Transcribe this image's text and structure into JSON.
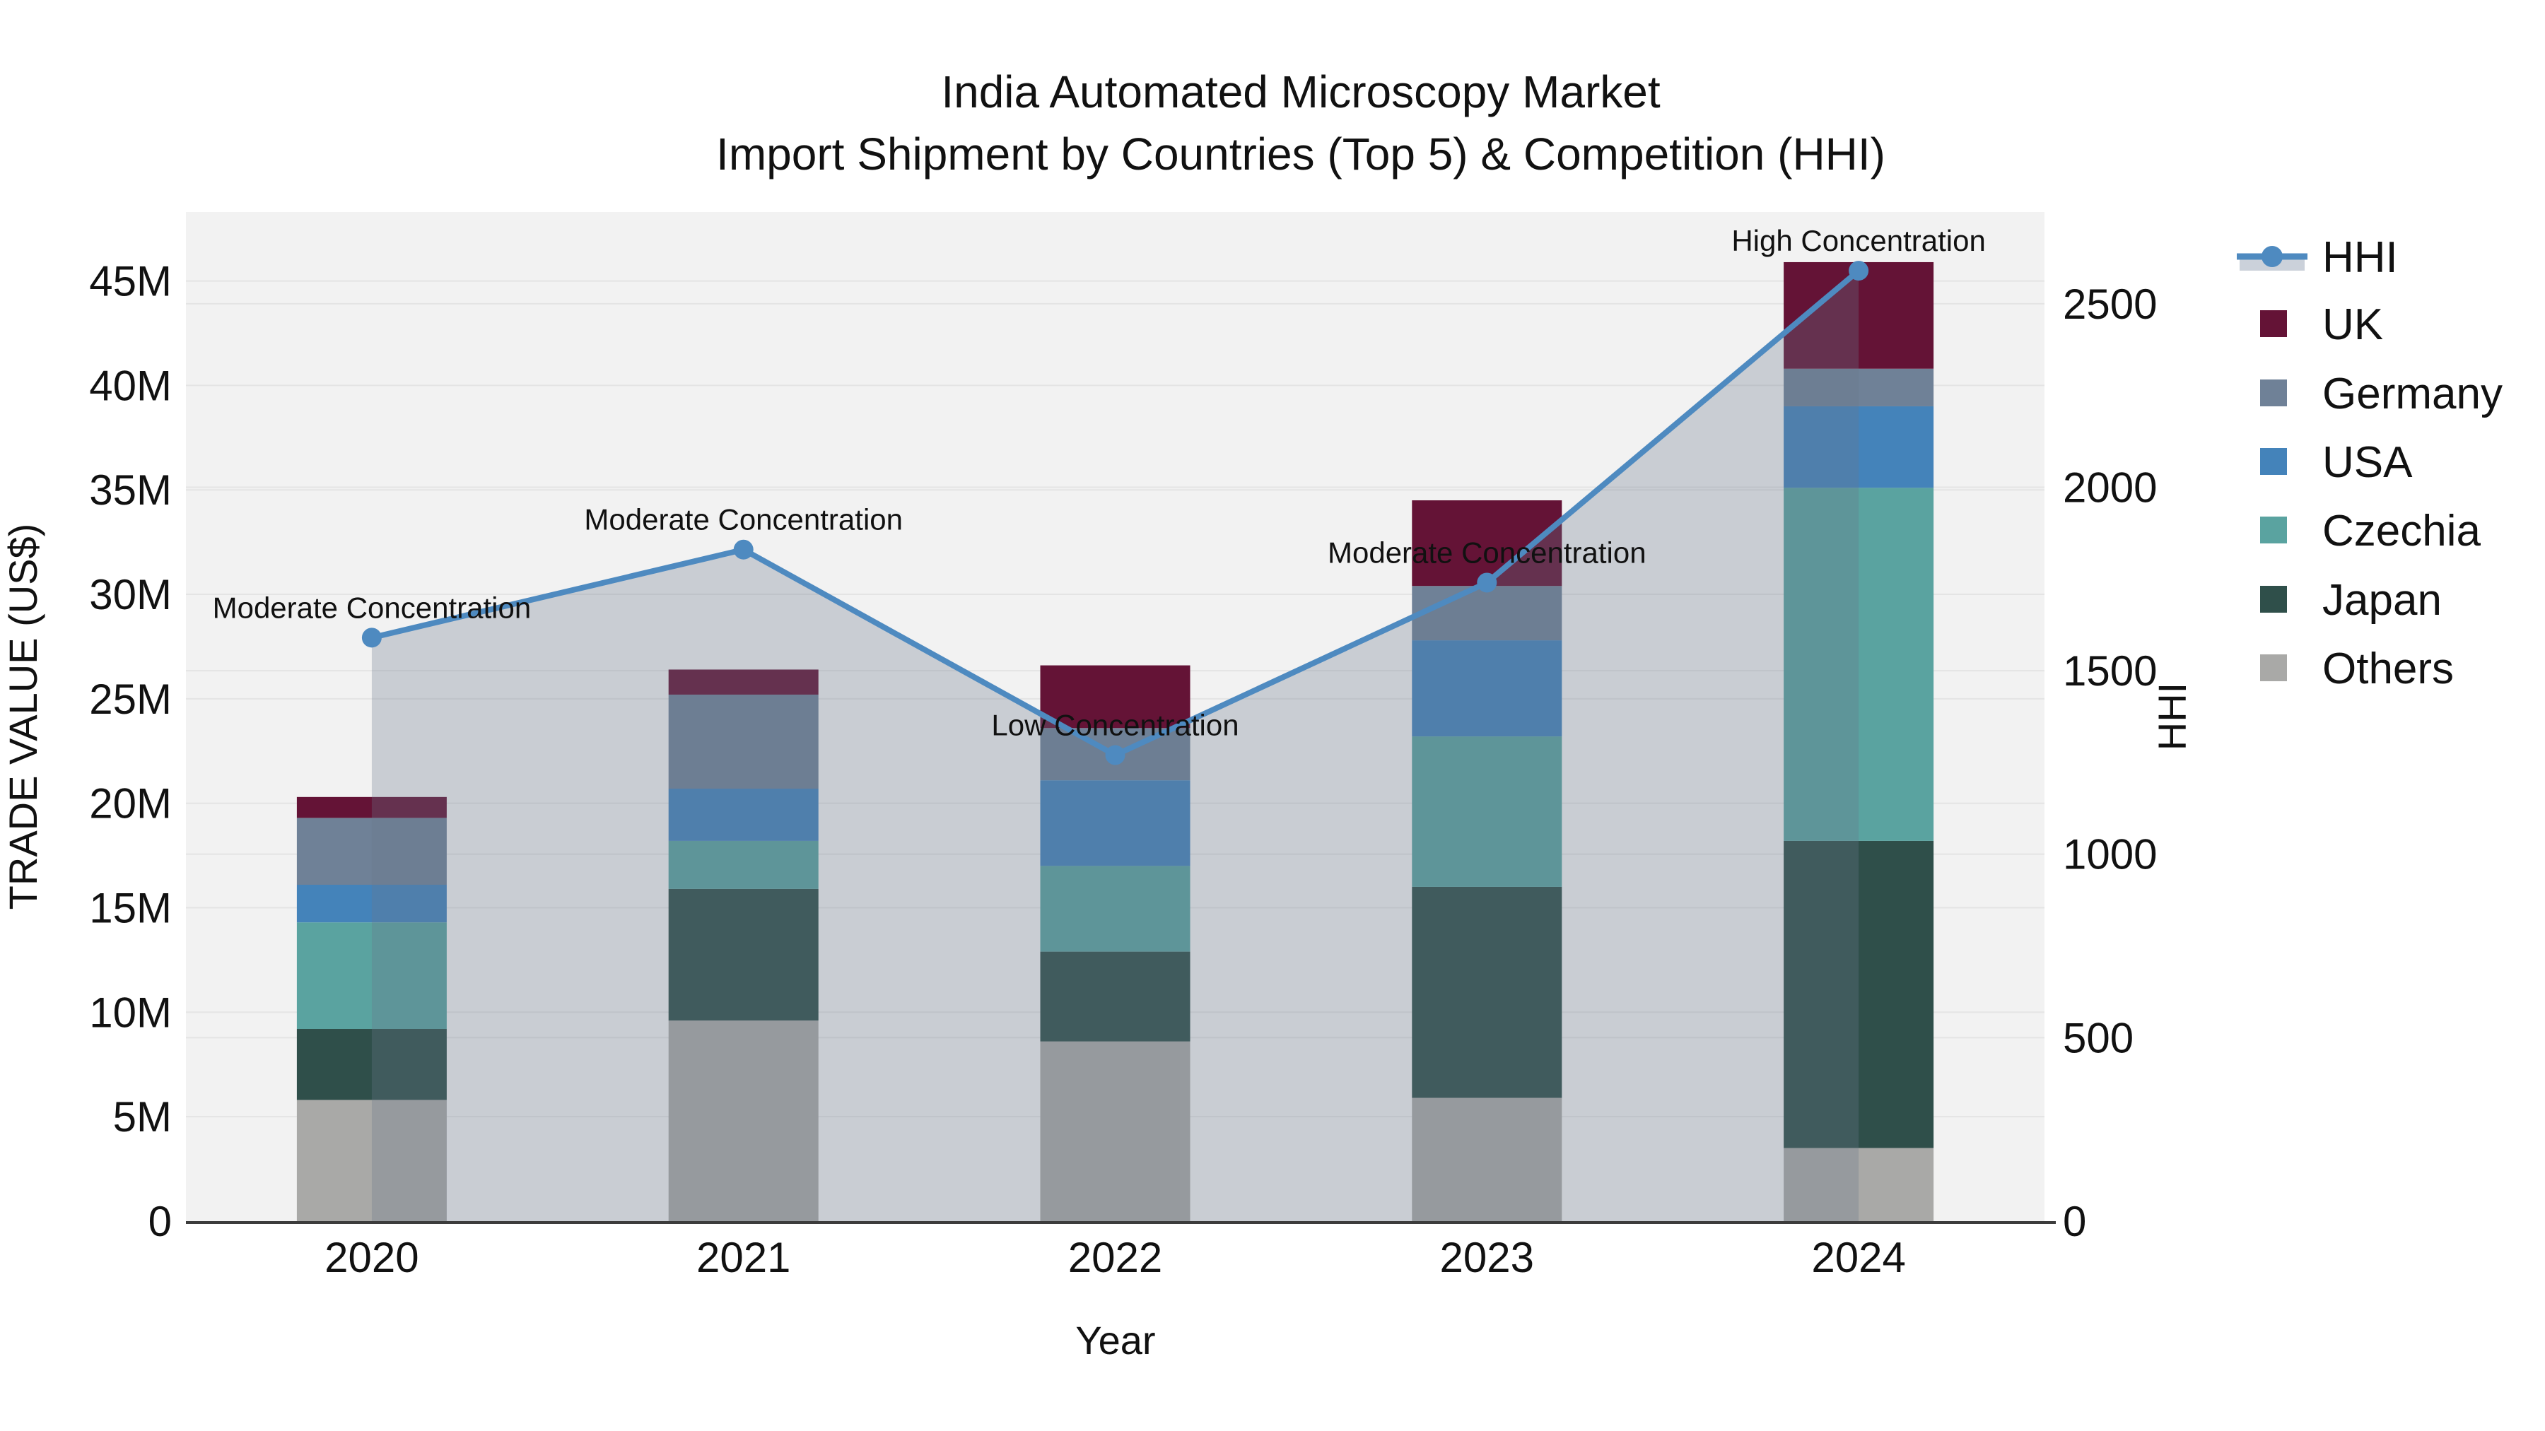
{
  "title": {
    "line1": "India Automated Microscopy Market",
    "line2": "Import Shipment by Countries (Top 5) & Competition (HHI)"
  },
  "axes": {
    "x_title": "Year",
    "y_left_title": "TRADE VALUE (US$)",
    "y_right_title": "HHI",
    "y_left_tick_labels": [
      "0",
      "5M",
      "10M",
      "15M",
      "20M",
      "25M",
      "30M",
      "35M",
      "40M",
      "45M"
    ],
    "y_right_tick_labels": [
      "0",
      "500",
      "1000",
      "1500",
      "2000",
      "2500"
    ]
  },
  "legend": {
    "items": [
      {
        "label": "HHI",
        "type": "line",
        "color": "#4E8AC0",
        "band_color": "#CBD1DA"
      },
      {
        "label": "UK",
        "type": "swatch",
        "color": "#641336"
      },
      {
        "label": "Germany",
        "type": "swatch",
        "color": "#6F8197"
      },
      {
        "label": "USA",
        "type": "swatch",
        "color": "#4483BA"
      },
      {
        "label": "Czechia",
        "type": "swatch",
        "color": "#5AA3A0"
      },
      {
        "label": "Japan",
        "type": "swatch",
        "color": "#2F4F4A"
      },
      {
        "label": "Others",
        "type": "swatch",
        "color": "#A9A9A7"
      }
    ]
  },
  "chart_data": {
    "type": "combo-stacked-bar-line-area",
    "categories": [
      "2020",
      "2021",
      "2022",
      "2023",
      "2024"
    ],
    "bar_value_unit": "million US$",
    "series": [
      {
        "name": "Others",
        "color": "#A9A9A7",
        "values": [
          5.8,
          9.6,
          8.6,
          5.9,
          3.5
        ]
      },
      {
        "name": "Japan",
        "color": "#2F4F4A",
        "values": [
          3.4,
          6.3,
          4.3,
          10.1,
          14.7
        ]
      },
      {
        "name": "Czechia",
        "color": "#5AA3A0",
        "values": [
          5.1,
          2.3,
          4.1,
          7.2,
          16.9
        ]
      },
      {
        "name": "USA",
        "color": "#4483BA",
        "values": [
          1.8,
          2.5,
          4.1,
          4.6,
          3.9
        ]
      },
      {
        "name": "Germany",
        "color": "#6F8197",
        "values": [
          3.2,
          4.5,
          2.5,
          2.6,
          1.8
        ]
      },
      {
        "name": "UK",
        "color": "#641336",
        "values": [
          1.0,
          1.2,
          3.0,
          4.1,
          5.1
        ]
      }
    ],
    "stack_totals": [
      20.3,
      26.4,
      26.6,
      34.5,
      45.9
    ],
    "line_series": {
      "name": "HHI",
      "axis": "right",
      "color": "#4E8AC0",
      "area_fill": "rgba(106,120,140,0.30)",
      "values": [
        1590,
        1830,
        1270,
        1740,
        2590
      ]
    },
    "annotations": [
      {
        "category": "2020",
        "text": "Moderate Concentration"
      },
      {
        "category": "2021",
        "text": "Moderate Concentration"
      },
      {
        "category": "2022",
        "text": "Low Concentration"
      },
      {
        "category": "2023",
        "text": "Moderate Concentration"
      },
      {
        "category": "2024",
        "text": "High Concentration"
      }
    ],
    "ylim_left": [
      0,
      48.3
    ],
    "ylim_right": [
      0,
      2750
    ],
    "y_left_ticks": [
      0,
      5,
      10,
      15,
      20,
      25,
      30,
      35,
      40,
      45
    ],
    "y_right_ticks": [
      0,
      500,
      1000,
      1500,
      2000,
      2500
    ],
    "grid": true,
    "legend_position": "right",
    "plot_background": "#F2F2F2",
    "grid_color": "#E4E4E4",
    "axis_line_color": "#3C3C3C"
  }
}
